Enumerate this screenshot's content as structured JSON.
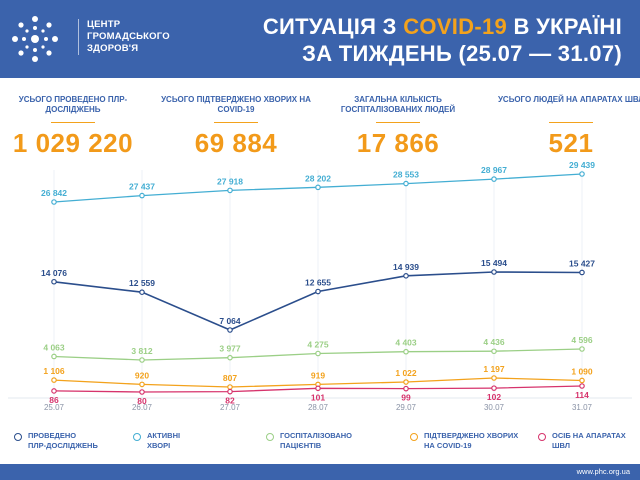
{
  "header": {
    "org_lines": [
      "ЦЕНТР",
      "ГРОМАДСЬКОГО",
      "ЗДОРОВ'Я"
    ],
    "title_part1": "СИТУАЦІЯ З ",
    "title_highlight": "COVID-19",
    "title_part2": " В УКРАЇНІ",
    "title_line2": "ЗА ТИЖДЕНЬ (25.07 — 31.07)",
    "logo_icon": "phc-logo-icon"
  },
  "kpis": [
    {
      "label": "УСЬОГО ПРОВЕДЕНО ПЛР-ДОСЛІДЖЕНЬ",
      "value": "1 029 220"
    },
    {
      "label": "УСЬОГО ПІДТВЕРДЖЕНО ХВОРИХ НА COVID-19",
      "value": "69 884"
    },
    {
      "label": "ЗАГАЛЬНА КІЛЬКІСТЬ ГОСПІТАЛІЗОВАНИХ ЛЮДЕЙ",
      "value": "17 866"
    },
    {
      "label": "УСЬОГО ЛЮДЕЙ НА АПАРАТАХ ШВЛ",
      "value": "521"
    }
  ],
  "chart_data": {
    "type": "line",
    "x": [
      "25.07",
      "26.07",
      "27.07",
      "28.07",
      "29.07",
      "30.07",
      "31.07"
    ],
    "series": [
      {
        "name": "АКТИВНІ ХВОРІ",
        "color": "#44aed3",
        "values": [
          26842,
          27437,
          27918,
          28202,
          28553,
          28967,
          29439
        ],
        "labels": [
          "26 842",
          "27 437",
          "27 918",
          "28 202",
          "28 553",
          "28 967",
          "29 439"
        ]
      },
      {
        "name": "ПРОВЕДЕНО ПЛР-ДОСЛІДЖЕНЬ",
        "color": "#2b4e8c",
        "values": [
          14076,
          12559,
          7064,
          12655,
          14939,
          15494,
          15427
        ],
        "labels": [
          "14 076",
          "12 559",
          "7 064",
          "12 655",
          "14 939",
          "15 494",
          "15 427"
        ]
      },
      {
        "name": "ГОСПІТАЛІЗОВАНО ПАЦІЄНТІВ",
        "color": "#9bcf86",
        "values": [
          4063,
          3812,
          3977,
          4275,
          4403,
          4436,
          4596
        ],
        "labels": [
          "4 063",
          "3 812",
          "3 977",
          "4 275",
          "4 403",
          "4 436",
          "4 596"
        ]
      },
      {
        "name": "ПІДТВЕРДЖЕНО ХВОРИХ НА COVID-19",
        "color": "#f3a21c",
        "values": [
          1106,
          920,
          807,
          919,
          1022,
          1197,
          1090
        ],
        "labels": [
          "1 106",
          "920",
          "807",
          "919",
          "1 022",
          "1 197",
          "1 090"
        ]
      },
      {
        "name": "ОСІБ НА АПАРАТАХ ШВЛ",
        "color": "#d6336c",
        "values": [
          86,
          80,
          82,
          101,
          99,
          102,
          114
        ],
        "labels": [
          "86",
          "80",
          "82",
          "101",
          "99",
          "102",
          "114"
        ]
      }
    ]
  },
  "legend": [
    {
      "text": "ПРОВЕДЕНО ПЛР-ДОСЛІДЖЕНЬ",
      "line1": "ПРОВЕДЕНО",
      "line2": "ПЛР-ДОСЛІДЖЕНЬ",
      "color": "#2b4e8c"
    },
    {
      "text": "АКТИВНІ ХВОРІ",
      "line1": "АКТИВНІ",
      "line2": "ХВОРІ",
      "color": "#44aed3"
    },
    {
      "text": "ГОСПІТАЛІЗОВАНО ПАЦІЄНТІВ",
      "line1": "ГОСПІТАЛІЗОВАНО",
      "line2": "ПАЦІЄНТІВ",
      "color": "#9bcf86"
    },
    {
      "text": "ПІДТВЕРДЖЕНО ХВОРИХ НА COVID-19",
      "line1": "ПІДТВЕРДЖЕНО ХВОРИХ",
      "line2": "НА COVID-19",
      "color": "#f3a21c"
    },
    {
      "text": "ОСІБ НА АПАРАТАХ ШВЛ",
      "line1": "ОСІБ НА АПАРАТАХ",
      "line2": "ШВЛ",
      "color": "#d6336c"
    }
  ],
  "footer": {
    "url": "www.phc.org.ua"
  }
}
